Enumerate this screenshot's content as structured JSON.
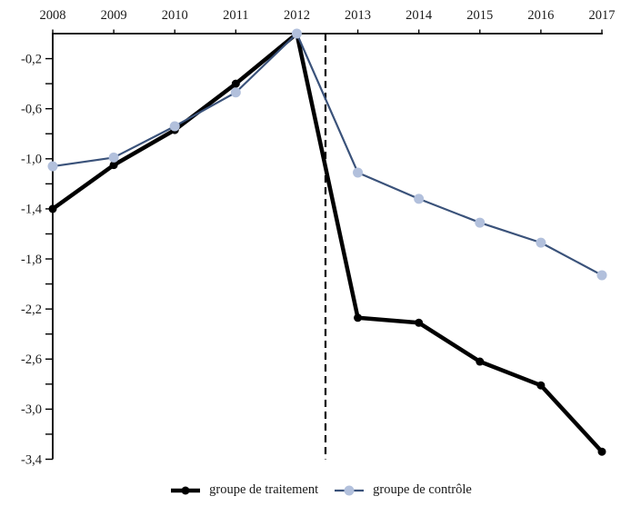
{
  "chart_data": {
    "type": "line",
    "title": "",
    "xlabel": "",
    "ylabel": "",
    "x": [
      2008,
      2009,
      2010,
      2011,
      2012,
      2013,
      2014,
      2015,
      2016,
      2017
    ],
    "x_tick_labels": [
      "2008",
      "2009",
      "2010",
      "2011",
      "2012",
      "2013",
      "2014",
      "2015",
      "2016",
      "2017"
    ],
    "series": [
      {
        "name": "groupe de traitement",
        "values": [
          -1.4,
          -1.05,
          -0.77,
          -0.4,
          0.0,
          -2.27,
          -2.31,
          -2.62,
          -2.81,
          -3.34
        ],
        "color": "#000000",
        "marker_color": "#000000"
      },
      {
        "name": "groupe de contrôle",
        "values": [
          -1.06,
          -0.99,
          -0.74,
          -0.47,
          0.0,
          -1.11,
          -1.32,
          -1.51,
          -1.67,
          -1.93
        ],
        "color": "#3a527a",
        "marker_color": "#b2c0dc"
      }
    ],
    "ylim": [
      -3.4,
      0
    ],
    "y_ticks": {
      "values": [
        -0.2,
        -0.4,
        -0.6,
        -0.8,
        -1.0,
        -1.2,
        -1.4,
        -1.6,
        -1.8,
        -2.0,
        -2.2,
        -2.4,
        -2.6,
        -2.8,
        -3.0,
        -3.2,
        -3.4
      ],
      "labels": [
        "-0,2",
        "",
        "-0,6",
        "",
        "-1,0",
        "",
        "-1,4",
        "",
        "-1,8",
        "",
        "-2,2",
        "",
        "-2,6",
        "",
        "-3,0",
        "",
        "-3,4"
      ]
    },
    "dashed_vline_x": 2012.47,
    "axis_color": "#000000",
    "x_axis_position": "top",
    "grid": false,
    "legend_position": "bottom-center"
  }
}
